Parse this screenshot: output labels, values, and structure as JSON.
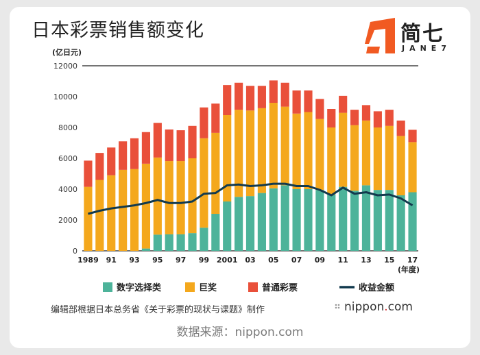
{
  "header": {
    "title": "日本彩票销售额变化"
  },
  "logo": {
    "cn": "简七",
    "en": "JANE7",
    "color": "#f15a22"
  },
  "chart_data": {
    "type": "bar",
    "stacked": true,
    "title": "日本彩票销售额变化",
    "ylabel": "(亿日元)",
    "xlabel": "(年度)",
    "ylim": [
      0,
      12000
    ],
    "yticks": [
      0,
      2000,
      4000,
      6000,
      8000,
      10000,
      12000
    ],
    "ytick_labels": [
      "0",
      "2000",
      "4000",
      "6000",
      "8000",
      "10000",
      "12000"
    ],
    "years": [
      1989,
      1990,
      1991,
      1992,
      1993,
      1994,
      1995,
      1996,
      1997,
      1998,
      1999,
      2000,
      2001,
      2002,
      2003,
      2004,
      2005,
      2006,
      2007,
      2008,
      2009,
      2010,
      2011,
      2012,
      2013,
      2014,
      2015,
      2016,
      2017
    ],
    "xtick_labels": {
      "1989": "1989",
      "1991": "91",
      "1993": "93",
      "1995": "95",
      "1997": "97",
      "1999": "99",
      "2001": "2001",
      "2003": "03",
      "2005": "05",
      "2007": "07",
      "2009": "09",
      "2011": "11",
      "2013": "13",
      "2015": "15",
      "2017": "17"
    },
    "series": [
      {
        "name": "数字选择类",
        "color": "#4db39a",
        "values": [
          0,
          0,
          0,
          0,
          0,
          150,
          1050,
          1070,
          1070,
          1150,
          1500,
          2400,
          3200,
          3500,
          3550,
          3750,
          4050,
          4250,
          4000,
          4000,
          3950,
          3650,
          4150,
          3900,
          4250,
          3950,
          3950,
          3600,
          3800
        ]
      },
      {
        "name": "巨奖",
        "color": "#f4a81d",
        "values": [
          4150,
          4600,
          4900,
          5250,
          5300,
          5500,
          5000,
          4750,
          4750,
          4850,
          5800,
          5250,
          5600,
          5650,
          5550,
          5500,
          5550,
          5100,
          4900,
          5000,
          4600,
          4350,
          4800,
          4250,
          4200,
          4050,
          4150,
          3850,
          3250
        ]
      },
      {
        "name": "普通彩票",
        "color": "#e9503a",
        "values": [
          1700,
          1750,
          1800,
          1850,
          2000,
          2050,
          2250,
          2050,
          2000,
          2100,
          2000,
          1900,
          1950,
          1750,
          1600,
          1450,
          1450,
          1550,
          1500,
          1400,
          1300,
          1200,
          1100,
          1000,
          1000,
          1050,
          1050,
          1000,
          800
        ]
      }
    ],
    "line": {
      "name": "收益金额",
      "color": "#123a4e",
      "values": [
        2400,
        2600,
        2750,
        2850,
        2950,
        3100,
        3300,
        3100,
        3100,
        3200,
        3700,
        3750,
        4250,
        4300,
        4200,
        4250,
        4350,
        4350,
        4200,
        4200,
        3950,
        3600,
        4100,
        3700,
        3800,
        3600,
        3650,
        3400,
        2950
      ]
    }
  },
  "legend": [
    {
      "label": "数字选择类",
      "color": "#4db39a"
    },
    {
      "label": "巨奖",
      "color": "#f4a81d"
    },
    {
      "label": "普通彩票",
      "color": "#e9503a"
    },
    {
      "label": "收益金额",
      "color": "#123a4e"
    }
  ],
  "footer": {
    "note": "编辑部根据日本总务省《关于彩票的现状与课题》制作",
    "brand_name": "nippon",
    "brand_dot": ".",
    "brand_tld": "com",
    "data_source": "数据来源：nippon.com"
  }
}
